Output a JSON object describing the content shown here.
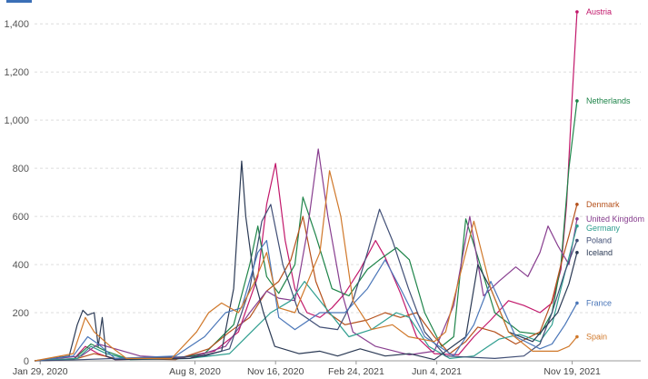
{
  "chart_data": {
    "type": "line",
    "title": "",
    "xlabel": "",
    "ylabel": "",
    "ylim": [
      0,
      1450
    ],
    "yticks": [
      0,
      200,
      400,
      600,
      800,
      1000,
      1200,
      1400
    ],
    "ytick_labels": [
      "0",
      "200",
      "400",
      "600",
      "800",
      "1,000",
      "1,200",
      "1,400"
    ],
    "x_range": [
      "2020-01-22",
      "2021-12-03"
    ],
    "xticks": [
      {
        "date": "2020-01-29",
        "label": "Jan 29, 2020"
      },
      {
        "date": "2020-08-08",
        "label": "Aug 8, 2020"
      },
      {
        "date": "2020-11-16",
        "label": "Nov 16, 2020"
      },
      {
        "date": "2021-02-24",
        "label": "Feb 24, 2021"
      },
      {
        "date": "2021-06-04",
        "label": "Jun 4, 2021"
      },
      {
        "date": "2021-11-19",
        "label": "Nov 19, 2021"
      }
    ],
    "grid": true,
    "legend": "end-of-line labels",
    "series": [
      {
        "name": "Austria",
        "color": "#c2186b",
        "points": [
          [
            "2020-01-22",
            0
          ],
          [
            "2020-03-10",
            5
          ],
          [
            "2020-03-25",
            60
          ],
          [
            "2020-04-10",
            30
          ],
          [
            "2020-05-01",
            5
          ],
          [
            "2020-07-15",
            10
          ],
          [
            "2020-09-01",
            40
          ],
          [
            "2020-10-01",
            120
          ],
          [
            "2020-10-25",
            350
          ],
          [
            "2020-11-05",
            650
          ],
          [
            "2020-11-16",
            820
          ],
          [
            "2020-11-28",
            500
          ],
          [
            "2020-12-10",
            300
          ],
          [
            "2020-12-25",
            200
          ],
          [
            "2021-01-10",
            180
          ],
          [
            "2021-01-25",
            220
          ],
          [
            "2021-02-10",
            280
          ],
          [
            "2021-03-01",
            380
          ],
          [
            "2021-03-20",
            500
          ],
          [
            "2021-04-01",
            430
          ],
          [
            "2021-04-20",
            280
          ],
          [
            "2021-05-10",
            100
          ],
          [
            "2021-06-01",
            30
          ],
          [
            "2021-07-01",
            25
          ],
          [
            "2021-07-20",
            100
          ],
          [
            "2021-08-10",
            170
          ],
          [
            "2021-09-01",
            250
          ],
          [
            "2021-09-20",
            230
          ],
          [
            "2021-10-10",
            200
          ],
          [
            "2021-10-25",
            240
          ],
          [
            "2021-11-05",
            380
          ],
          [
            "2021-11-12",
            650
          ],
          [
            "2021-11-19",
            1100
          ],
          [
            "2021-11-25",
            1450
          ]
        ]
      },
      {
        "name": "Netherlands",
        "color": "#1e8449",
        "points": [
          [
            "2020-01-22",
            0
          ],
          [
            "2020-03-10",
            5
          ],
          [
            "2020-04-01",
            70
          ],
          [
            "2020-04-20",
            40
          ],
          [
            "2020-05-15",
            10
          ],
          [
            "2020-07-15",
            10
          ],
          [
            "2020-08-20",
            30
          ],
          [
            "2020-09-25",
            150
          ],
          [
            "2020-10-15",
            400
          ],
          [
            "2020-10-25",
            560
          ],
          [
            "2020-11-05",
            350
          ],
          [
            "2020-11-20",
            280
          ],
          [
            "2020-12-10",
            400
          ],
          [
            "2020-12-20",
            680
          ],
          [
            "2021-01-05",
            520
          ],
          [
            "2021-01-25",
            300
          ],
          [
            "2021-02-15",
            270
          ],
          [
            "2021-03-10",
            380
          ],
          [
            "2021-03-25",
            420
          ],
          [
            "2021-04-15",
            470
          ],
          [
            "2021-05-01",
            420
          ],
          [
            "2021-05-20",
            200
          ],
          [
            "2021-06-10",
            60
          ],
          [
            "2021-06-25",
            100
          ],
          [
            "2021-07-10",
            590
          ],
          [
            "2021-07-25",
            430
          ],
          [
            "2021-08-15",
            200
          ],
          [
            "2021-09-15",
            120
          ],
          [
            "2021-10-10",
            110
          ],
          [
            "2021-10-25",
            200
          ],
          [
            "2021-11-05",
            400
          ],
          [
            "2021-11-15",
            800
          ],
          [
            "2021-11-25",
            1080
          ]
        ]
      },
      {
        "name": "Denmark",
        "color": "#b5511c",
        "points": [
          [
            "2020-01-22",
            0
          ],
          [
            "2020-03-15",
            10
          ],
          [
            "2020-04-05",
            30
          ],
          [
            "2020-05-01",
            10
          ],
          [
            "2020-07-15",
            5
          ],
          [
            "2020-08-25",
            50
          ],
          [
            "2020-09-20",
            120
          ],
          [
            "2020-10-15",
            180
          ],
          [
            "2020-11-05",
            290
          ],
          [
            "2020-11-20",
            330
          ],
          [
            "2020-12-05",
            420
          ],
          [
            "2020-12-20",
            600
          ],
          [
            "2021-01-05",
            330
          ],
          [
            "2021-01-20",
            200
          ],
          [
            "2021-02-10",
            150
          ],
          [
            "2021-03-10",
            170
          ],
          [
            "2021-04-01",
            200
          ],
          [
            "2021-04-20",
            180
          ],
          [
            "2021-05-10",
            200
          ],
          [
            "2021-06-01",
            100
          ],
          [
            "2021-06-20",
            30
          ],
          [
            "2021-07-10",
            80
          ],
          [
            "2021-07-25",
            140
          ],
          [
            "2021-08-15",
            120
          ],
          [
            "2021-09-10",
            70
          ],
          [
            "2021-10-10",
            120
          ],
          [
            "2021-10-25",
            250
          ],
          [
            "2021-11-05",
            400
          ],
          [
            "2021-11-15",
            520
          ],
          [
            "2021-11-25",
            650
          ]
        ]
      },
      {
        "name": "United Kingdom",
        "color": "#883e8f",
        "points": [
          [
            "2020-01-22",
            0
          ],
          [
            "2020-03-20",
            20
          ],
          [
            "2020-04-10",
            70
          ],
          [
            "2020-05-01",
            50
          ],
          [
            "2020-06-01",
            20
          ],
          [
            "2020-08-01",
            10
          ],
          [
            "2020-09-15",
            60
          ],
          [
            "2020-10-15",
            200
          ],
          [
            "2020-11-05",
            290
          ],
          [
            "2020-11-20",
            260
          ],
          [
            "2020-12-10",
            250
          ],
          [
            "2020-12-25",
            530
          ],
          [
            "2021-01-08",
            880
          ],
          [
            "2021-01-20",
            600
          ],
          [
            "2021-02-05",
            300
          ],
          [
            "2021-02-20",
            120
          ],
          [
            "2021-03-20",
            60
          ],
          [
            "2021-05-01",
            25
          ],
          [
            "2021-06-01",
            40
          ],
          [
            "2021-06-25",
            230
          ],
          [
            "2021-07-15",
            600
          ],
          [
            "2021-08-01",
            270
          ],
          [
            "2021-08-20",
            330
          ],
          [
            "2021-09-10",
            390
          ],
          [
            "2021-09-25",
            350
          ],
          [
            "2021-10-10",
            450
          ],
          [
            "2021-10-20",
            560
          ],
          [
            "2021-11-01",
            480
          ],
          [
            "2021-11-15",
            400
          ],
          [
            "2021-11-25",
            590
          ]
        ]
      },
      {
        "name": "Germany",
        "color": "#2f9e8f",
        "points": [
          [
            "2020-01-22",
            0
          ],
          [
            "2020-03-15",
            10
          ],
          [
            "2020-04-01",
            60
          ],
          [
            "2020-04-20",
            30
          ],
          [
            "2020-05-20",
            5
          ],
          [
            "2020-08-01",
            10
          ],
          [
            "2020-09-20",
            30
          ],
          [
            "2020-10-20",
            130
          ],
          [
            "2020-11-10",
            200
          ],
          [
            "2020-12-05",
            250
          ],
          [
            "2020-12-22",
            330
          ],
          [
            "2021-01-10",
            250
          ],
          [
            "2021-02-15",
            100
          ],
          [
            "2021-03-15",
            130
          ],
          [
            "2021-04-15",
            200
          ],
          [
            "2021-05-01",
            180
          ],
          [
            "2021-05-25",
            60
          ],
          [
            "2021-06-20",
            10
          ],
          [
            "2021-07-20",
            20
          ],
          [
            "2021-08-20",
            90
          ],
          [
            "2021-09-15",
            110
          ],
          [
            "2021-10-10",
            80
          ],
          [
            "2021-10-25",
            150
          ],
          [
            "2021-11-05",
            300
          ],
          [
            "2021-11-15",
            430
          ],
          [
            "2021-11-25",
            560
          ]
        ]
      },
      {
        "name": "Poland",
        "color": "#404e75",
        "points": [
          [
            "2020-01-22",
            0
          ],
          [
            "2020-03-20",
            5
          ],
          [
            "2020-05-01",
            10
          ],
          [
            "2020-07-15",
            15
          ],
          [
            "2020-08-20",
            20
          ],
          [
            "2020-09-20",
            50
          ],
          [
            "2020-10-15",
            300
          ],
          [
            "2020-10-30",
            580
          ],
          [
            "2020-11-10",
            650
          ],
          [
            "2020-11-25",
            400
          ],
          [
            "2020-12-15",
            200
          ],
          [
            "2021-01-10",
            140
          ],
          [
            "2021-02-01",
            130
          ],
          [
            "2021-02-20",
            250
          ],
          [
            "2021-03-10",
            450
          ],
          [
            "2021-03-25",
            630
          ],
          [
            "2021-04-10",
            500
          ],
          [
            "2021-04-30",
            300
          ],
          [
            "2021-05-20",
            120
          ],
          [
            "2021-06-15",
            20
          ],
          [
            "2021-08-15",
            10
          ],
          [
            "2021-09-20",
            20
          ],
          [
            "2021-10-10",
            70
          ],
          [
            "2021-10-25",
            200
          ],
          [
            "2021-11-10",
            370
          ],
          [
            "2021-11-25",
            500
          ]
        ]
      },
      {
        "name": "Iceland",
        "color": "#2b3a55",
        "points": [
          [
            "2020-01-22",
            0
          ],
          [
            "2020-03-05",
            20
          ],
          [
            "2020-03-15",
            150
          ],
          [
            "2020-03-22",
            210
          ],
          [
            "2020-03-28",
            190
          ],
          [
            "2020-04-05",
            200
          ],
          [
            "2020-04-10",
            60
          ],
          [
            "2020-04-15",
            180
          ],
          [
            "2020-04-20",
            20
          ],
          [
            "2020-05-01",
            5
          ],
          [
            "2020-08-01",
            10
          ],
          [
            "2020-09-10",
            40
          ],
          [
            "2020-09-25",
            300
          ],
          [
            "2020-10-05",
            830
          ],
          [
            "2020-10-10",
            600
          ],
          [
            "2020-10-20",
            350
          ],
          [
            "2020-11-01",
            200
          ],
          [
            "2020-11-15",
            60
          ],
          [
            "2020-12-15",
            30
          ],
          [
            "2021-01-10",
            40
          ],
          [
            "2021-02-01",
            20
          ],
          [
            "2021-03-01",
            50
          ],
          [
            "2021-04-01",
            20
          ],
          [
            "2021-05-01",
            30
          ],
          [
            "2021-06-01",
            5
          ],
          [
            "2021-07-10",
            100
          ],
          [
            "2021-07-25",
            400
          ],
          [
            "2021-08-10",
            300
          ],
          [
            "2021-09-01",
            120
          ],
          [
            "2021-10-01",
            80
          ],
          [
            "2021-11-01",
            200
          ],
          [
            "2021-11-15",
            320
          ],
          [
            "2021-11-25",
            450
          ]
        ]
      },
      {
        "name": "France",
        "color": "#4a76b8",
        "points": [
          [
            "2020-01-22",
            0
          ],
          [
            "2020-03-10",
            20
          ],
          [
            "2020-03-28",
            100
          ],
          [
            "2020-04-10",
            70
          ],
          [
            "2020-05-01",
            10
          ],
          [
            "2020-07-15",
            20
          ],
          [
            "2020-08-20",
            100
          ],
          [
            "2020-09-15",
            200
          ],
          [
            "2020-10-05",
            220
          ],
          [
            "2020-10-25",
            450
          ],
          [
            "2020-11-05",
            500
          ],
          [
            "2020-11-20",
            180
          ],
          [
            "2020-12-10",
            130
          ],
          [
            "2021-01-10",
            200
          ],
          [
            "2021-02-10",
            200
          ],
          [
            "2021-03-10",
            300
          ],
          [
            "2021-04-01",
            420
          ],
          [
            "2021-04-20",
            300
          ],
          [
            "2021-05-20",
            100
          ],
          [
            "2021-06-25",
            20
          ],
          [
            "2021-07-20",
            150
          ],
          [
            "2021-08-10",
            330
          ],
          [
            "2021-09-10",
            100
          ],
          [
            "2021-10-10",
            50
          ],
          [
            "2021-10-25",
            70
          ],
          [
            "2021-11-10",
            150
          ],
          [
            "2021-11-25",
            240
          ]
        ]
      },
      {
        "name": "Spain",
        "color": "#d0782a",
        "points": [
          [
            "2020-01-22",
            0
          ],
          [
            "2020-03-10",
            30
          ],
          [
            "2020-03-25",
            180
          ],
          [
            "2020-04-05",
            120
          ],
          [
            "2020-04-25",
            60
          ],
          [
            "2020-05-15",
            10
          ],
          [
            "2020-07-10",
            10
          ],
          [
            "2020-08-10",
            120
          ],
          [
            "2020-08-25",
            200
          ],
          [
            "2020-09-10",
            240
          ],
          [
            "2020-10-01",
            200
          ],
          [
            "2020-10-20",
            320
          ],
          [
            "2020-11-05",
            450
          ],
          [
            "2020-11-20",
            220
          ],
          [
            "2020-12-10",
            200
          ],
          [
            "2021-01-10",
            450
          ],
          [
            "2021-01-22",
            790
          ],
          [
            "2021-02-05",
            600
          ],
          [
            "2021-02-20",
            250
          ],
          [
            "2021-03-15",
            130
          ],
          [
            "2021-04-10",
            150
          ],
          [
            "2021-04-30",
            100
          ],
          [
            "2021-06-01",
            80
          ],
          [
            "2021-06-15",
            120
          ],
          [
            "2021-07-10",
            450
          ],
          [
            "2021-07-20",
            580
          ],
          [
            "2021-08-10",
            300
          ],
          [
            "2021-09-01",
            120
          ],
          [
            "2021-10-01",
            40
          ],
          [
            "2021-11-01",
            40
          ],
          [
            "2021-11-15",
            60
          ],
          [
            "2021-11-25",
            100
          ]
        ]
      }
    ]
  }
}
